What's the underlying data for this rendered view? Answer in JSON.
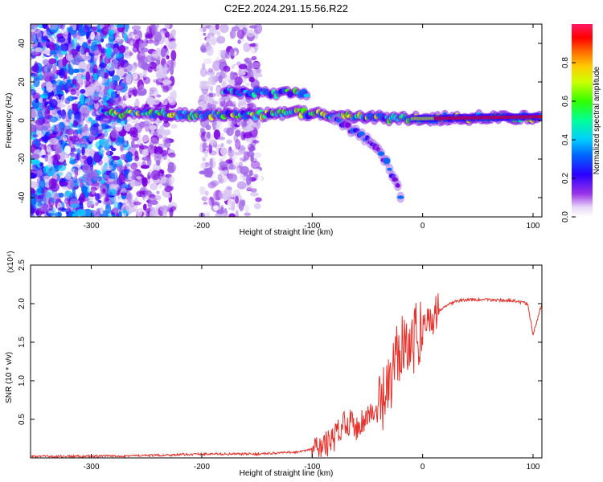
{
  "title": "C2E2.2024.291.15.56.R22",
  "chart_data": [
    {
      "type": "heatmap",
      "name": "spectrogram",
      "xlabel": "Height of straight line (km)",
      "ylabel": "Frequency (Hz)",
      "xlim": [
        -355,
        108
      ],
      "ylim": [
        -50,
        50
      ],
      "xticks": [
        -300,
        -200,
        -100,
        0,
        100
      ],
      "yticks": [
        -40,
        -20,
        0,
        20,
        40
      ],
      "colorbar": {
        "label": "Normalized spectral amplitude",
        "range": [
          0,
          1
        ],
        "ticks": [
          "0.0",
          "0.2",
          "0.4",
          "0.6",
          "0.8"
        ],
        "colors": [
          "#ffffff",
          "#d9c6f2",
          "#a066e8",
          "#7a00e0",
          "#2a00ff",
          "#0066ff",
          "#00ccff",
          "#00ff99",
          "#33ff00",
          "#ccff00",
          "#ffcc00",
          "#ff6600",
          "#ff0000",
          "#ff1a66"
        ]
      },
      "features": [
        {
          "label": "main line",
          "x": [
            -290,
            -250,
            -200,
            -150,
            -110,
            -60,
            -30,
            0,
            50,
            108
          ],
          "freq": [
            4,
            3.5,
            3,
            3,
            4,
            2,
            1,
            1,
            1.5,
            2
          ],
          "amplitude": 0.55
        },
        {
          "label": "upper branch",
          "x": [
            -180,
            -140,
            -105
          ],
          "freq": [
            15,
            14,
            14
          ],
          "amplitude": 0.45
        },
        {
          "label": "descending branch",
          "x": [
            -80,
            -60,
            -40,
            -25,
            -20
          ],
          "freq": [
            1,
            -6,
            -14,
            -30,
            -40
          ],
          "amplitude": 0.3
        }
      ]
    },
    {
      "type": "line",
      "name": "snr",
      "xlabel": "Height of straight line (km)",
      "ylabel": "SNR (10 * v/v)",
      "y_scale_label": "(x10⁴)",
      "xlim": [
        -355,
        108
      ],
      "ylim": [
        0,
        2.5
      ],
      "xticks": [
        -300,
        -200,
        -100,
        0,
        100
      ],
      "yticks": [
        "0.5",
        "1.0",
        "1.5",
        "2.0",
        "2.5"
      ],
      "color": "#e8302a",
      "x": [
        -355,
        -300,
        -250,
        -200,
        -150,
        -110,
        -90,
        -80,
        -70,
        -60,
        -50,
        -40,
        -30,
        -20,
        -15,
        -10,
        -5,
        0,
        10,
        20,
        30,
        40,
        60,
        80,
        95,
        100,
        108
      ],
      "y": [
        0.02,
        0.02,
        0.03,
        0.05,
        0.05,
        0.08,
        0.15,
        0.25,
        0.5,
        0.4,
        0.55,
        0.6,
        0.9,
        1.5,
        1.6,
        1.4,
        1.6,
        1.7,
        1.85,
        1.97,
        2.03,
        2.05,
        2.05,
        2.04,
        2.0,
        1.6,
        2.0
      ]
    }
  ]
}
